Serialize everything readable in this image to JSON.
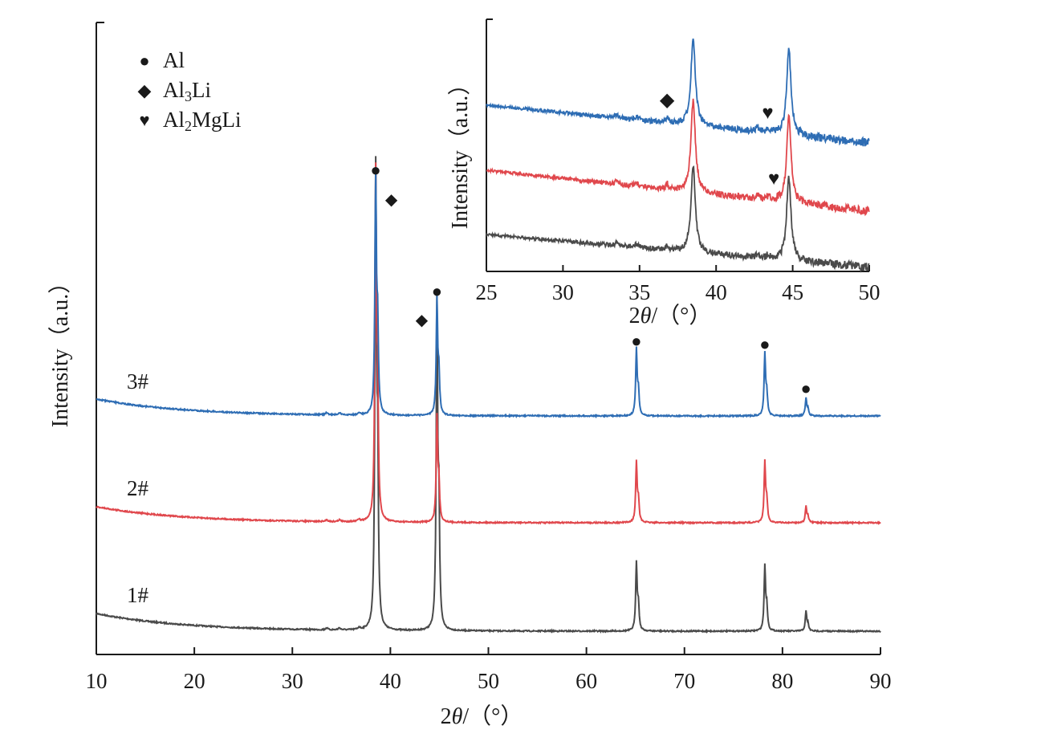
{
  "chart_data": [
    {
      "type": "line",
      "title": "",
      "xlabel": "2θ/（°）",
      "ylabel": "Intensity（a.u.）",
      "xlim": [
        10,
        90
      ],
      "y_ticks_shown": false,
      "x_ticks": [
        "10",
        "20",
        "30",
        "40",
        "50",
        "60",
        "70",
        "80",
        "90"
      ],
      "grid": false,
      "legend": {
        "placement": "top-left",
        "entries": [
          {
            "symbol": "●",
            "label": "Al",
            "icon": "circle-marker-icon"
          },
          {
            "symbol": "◆",
            "label": "Al3Li",
            "icon": "diamond-marker-icon"
          },
          {
            "symbol": "♥",
            "label": "Al2MgLi",
            "icon": "heart-marker-icon"
          }
        ]
      },
      "series": [
        {
          "name": "1#",
          "color": "#4a4a4a",
          "peaks_2theta": [
            38.5,
            44.75,
            65.1,
            78.2,
            82.4
          ],
          "relative_heights": [
            1.0,
            0.62,
            0.3,
            0.26,
            0.09
          ]
        },
        {
          "name": "2#",
          "color": "#e0474c",
          "peaks_2theta": [
            38.5,
            44.75,
            65.1,
            78.2,
            82.4
          ],
          "relative_heights": [
            1.0,
            0.55,
            0.32,
            0.28,
            0.08
          ]
        },
        {
          "name": "3#",
          "color": "#2e6db4",
          "peaks_2theta": [
            38.5,
            44.75,
            65.1,
            78.2,
            82.4
          ],
          "relative_heights": [
            1.0,
            0.5,
            0.27,
            0.27,
            0.07
          ]
        }
      ],
      "annotations": [
        {
          "symbol": "●",
          "phase": "Al",
          "x": 38.5
        },
        {
          "symbol": "◆",
          "phase": "Al3Li",
          "x": 40.1
        },
        {
          "symbol": "●",
          "phase": "Al",
          "x": 44.75
        },
        {
          "symbol": "◆",
          "phase": "Al3Li",
          "x": 43.2
        },
        {
          "symbol": "●",
          "phase": "Al",
          "x": 65.1
        },
        {
          "symbol": "●",
          "phase": "Al",
          "x": 78.2
        },
        {
          "symbol": "●",
          "phase": "Al",
          "x": 82.4
        }
      ]
    },
    {
      "type": "line",
      "title": "",
      "xlabel": "2θ/（°）",
      "ylabel": "Intensity（a.u.）",
      "xlim": [
        25,
        50
      ],
      "x_ticks": [
        "25",
        "30",
        "35",
        "40",
        "45",
        "50"
      ],
      "grid": false,
      "series": [
        {
          "name": "1#",
          "color": "#4a4a4a"
        },
        {
          "name": "2#",
          "color": "#e0474c"
        },
        {
          "name": "3#",
          "color": "#2e6db4"
        }
      ],
      "minor_peaks_2theta": [
        33.5,
        34.8,
        36.8,
        42.7,
        43.4
      ],
      "annotations": [
        {
          "symbol": "◆",
          "phase": "Al3Li",
          "x": 36.8
        },
        {
          "symbol": "♥",
          "phase": "Al2MgLi",
          "x": 43.0
        },
        {
          "symbol": "♥",
          "phase": "Al2MgLi",
          "x": 43.4
        }
      ]
    }
  ]
}
